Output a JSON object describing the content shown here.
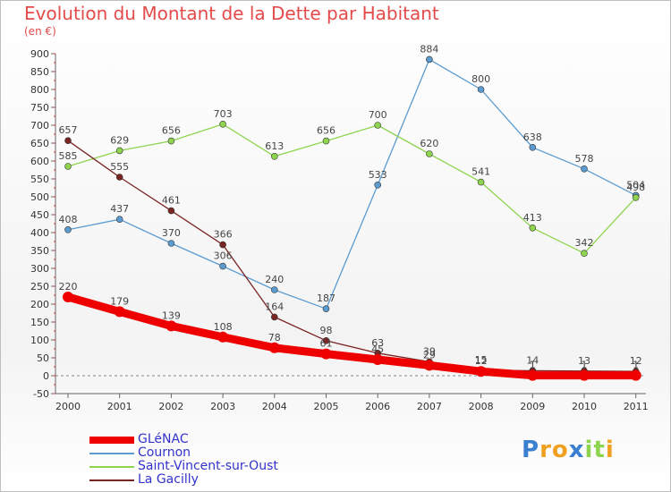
{
  "chart_data": {
    "type": "line",
    "title": "Evolution du Montant de la Dette par Habitant",
    "subtitle": "(en €)",
    "categories": [
      "2000",
      "2001",
      "2002",
      "2003",
      "2004",
      "2005",
      "2006",
      "2007",
      "2008",
      "2009",
      "2010",
      "2011"
    ],
    "ylim": [
      -50,
      900
    ],
    "yticks": [
      -50,
      0,
      50,
      100,
      150,
      200,
      250,
      300,
      350,
      400,
      450,
      500,
      550,
      600,
      650,
      700,
      750,
      800,
      850,
      900
    ],
    "grid": false,
    "legend_position": "bottom-left",
    "series": [
      {
        "name": "GLéNAC",
        "color": "#ee0000",
        "values": [
          220,
          179,
          139,
          108,
          78,
          61,
          45,
          29,
          12,
          1,
          1,
          1
        ],
        "labels": [
          "220",
          "179",
          "139",
          "108",
          "78",
          "61",
          "45",
          "29",
          "12",
          "1",
          "1",
          "1"
        ]
      },
      {
        "name": "Cournon",
        "color": "#5b9bd0",
        "values": [
          408,
          437,
          370,
          306,
          240,
          187,
          533,
          884,
          800,
          638,
          578,
          504
        ],
        "labels": [
          "408",
          "437",
          "370",
          "306",
          "240",
          "187",
          "533",
          "884",
          "800",
          "638",
          "578",
          "504"
        ]
      },
      {
        "name": "Saint-Vincent-sur-Oust",
        "color": "#8ed44f",
        "values": [
          585,
          629,
          656,
          703,
          613,
          656,
          700,
          620,
          541,
          413,
          342,
          498
        ],
        "labels": [
          "585",
          "629",
          "656",
          "703",
          "613",
          "656",
          "700",
          "620",
          "541",
          "413",
          "342",
          "498"
        ]
      },
      {
        "name": "La Gacilly",
        "color": "#7a2424",
        "values": [
          657,
          555,
          461,
          366,
          164,
          98,
          63,
          39,
          15,
          14,
          13,
          12
        ],
        "labels": [
          "657",
          "555",
          "461",
          "366",
          "164",
          "98",
          "63",
          "39",
          "15",
          "14",
          "13",
          "12"
        ]
      }
    ]
  },
  "brand": {
    "letters": [
      "P",
      "r",
      "o",
      "x",
      "i",
      "t",
      "i"
    ],
    "colors": [
      "#3a7fd0",
      "#f0a020",
      "#f0a020",
      "#3a7fd0",
      "#8ed44f",
      "#8ed44f",
      "#f0a020"
    ]
  }
}
